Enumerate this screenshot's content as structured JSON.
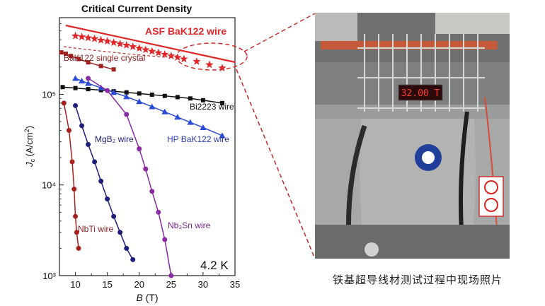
{
  "chart_data": {
    "type": "line",
    "title": "Critical Current Density",
    "xlabel": "B (T)",
    "ylabel": "Jc (A/cm²)",
    "xlim": [
      7.5,
      35
    ],
    "ylim": [
      1000,
      700000
    ],
    "y_scale": "log",
    "x_ticks": [
      10,
      15,
      20,
      25,
      30,
      35
    ],
    "x_tick_labels": [
      "10",
      "15",
      "20",
      "25",
      "30",
      "35"
    ],
    "y_ticks": [
      1000,
      10000,
      100000
    ],
    "y_tick_labels": [
      "10³",
      "10⁴",
      "10⁵"
    ],
    "grid": false,
    "annotation": "4.2 K",
    "series": [
      {
        "name": "ASF BaK122 wire",
        "marker": "star",
        "color": "#e0282a",
        "x": [
          10,
          11,
          12,
          13,
          14,
          15,
          16,
          17,
          18,
          19,
          20,
          21,
          22,
          23,
          24,
          25,
          26,
          27,
          29,
          31,
          33
        ],
        "y": [
          440000,
          430000,
          420000,
          410000,
          395000,
          385000,
          372000,
          360000,
          348000,
          335000,
          322000,
          310000,
          298000,
          287000,
          276000,
          265000,
          255000,
          245000,
          230000,
          212000,
          195000
        ]
      },
      {
        "name": "BaK122 single crystal",
        "marker": "square",
        "color": "#a02020",
        "x": [
          7.8,
          8.5,
          9.3,
          10.5,
          12,
          14,
          16
        ],
        "y": [
          290000,
          280000,
          265000,
          245000,
          225000,
          205000,
          188000
        ]
      },
      {
        "name": "Bi2223 wire",
        "marker": "square",
        "color": "#111111",
        "x": [
          8,
          10,
          12,
          14,
          16,
          18,
          20,
          22,
          24,
          26,
          28,
          30,
          33
        ],
        "y": [
          120000,
          117000,
          114000,
          111000,
          108000,
          105000,
          102000,
          99000,
          96000,
          93000,
          90000,
          86000,
          80000
        ]
      },
      {
        "name": "HP BaK122 wire",
        "marker": "triangle",
        "color": "#2a4bd7",
        "x": [
          10,
          11,
          12,
          14,
          16,
          18,
          20,
          22,
          24,
          26,
          28,
          30,
          33
        ],
        "y": [
          150000,
          140000,
          132000,
          118000,
          105000,
          94000,
          83000,
          73000,
          64000,
          56000,
          49000,
          43000,
          35000
        ]
      },
      {
        "name": "MgB₂ wire",
        "marker": "circle",
        "color": "#1e1e7a",
        "x": [
          10,
          11,
          12,
          13,
          14,
          15,
          16,
          17,
          18,
          19
        ],
        "y": [
          75000,
          45000,
          28000,
          18000,
          11000,
          7000,
          4500,
          3000,
          2000,
          1500
        ]
      },
      {
        "name": "Nb₃Sn wire",
        "marker": "circle",
        "color": "#8a2aa5",
        "x": [
          12,
          15,
          18,
          20,
          21,
          22,
          23,
          24,
          25
        ],
        "y": [
          150000,
          110000,
          60000,
          25000,
          15000,
          8500,
          5000,
          2500,
          1000
        ]
      },
      {
        "name": "NbTi wire",
        "marker": "circle",
        "color": "#a8211e",
        "x": [
          8.2,
          9,
          9.5,
          9.8,
          10,
          10.2,
          10.5
        ],
        "y": [
          80000,
          40000,
          18000,
          9000,
          4500,
          3000,
          2000
        ]
      }
    ]
  },
  "photo": {
    "display_sign": "32.00 T"
  },
  "caption": "铁基超导线材测试过程中现场照片"
}
